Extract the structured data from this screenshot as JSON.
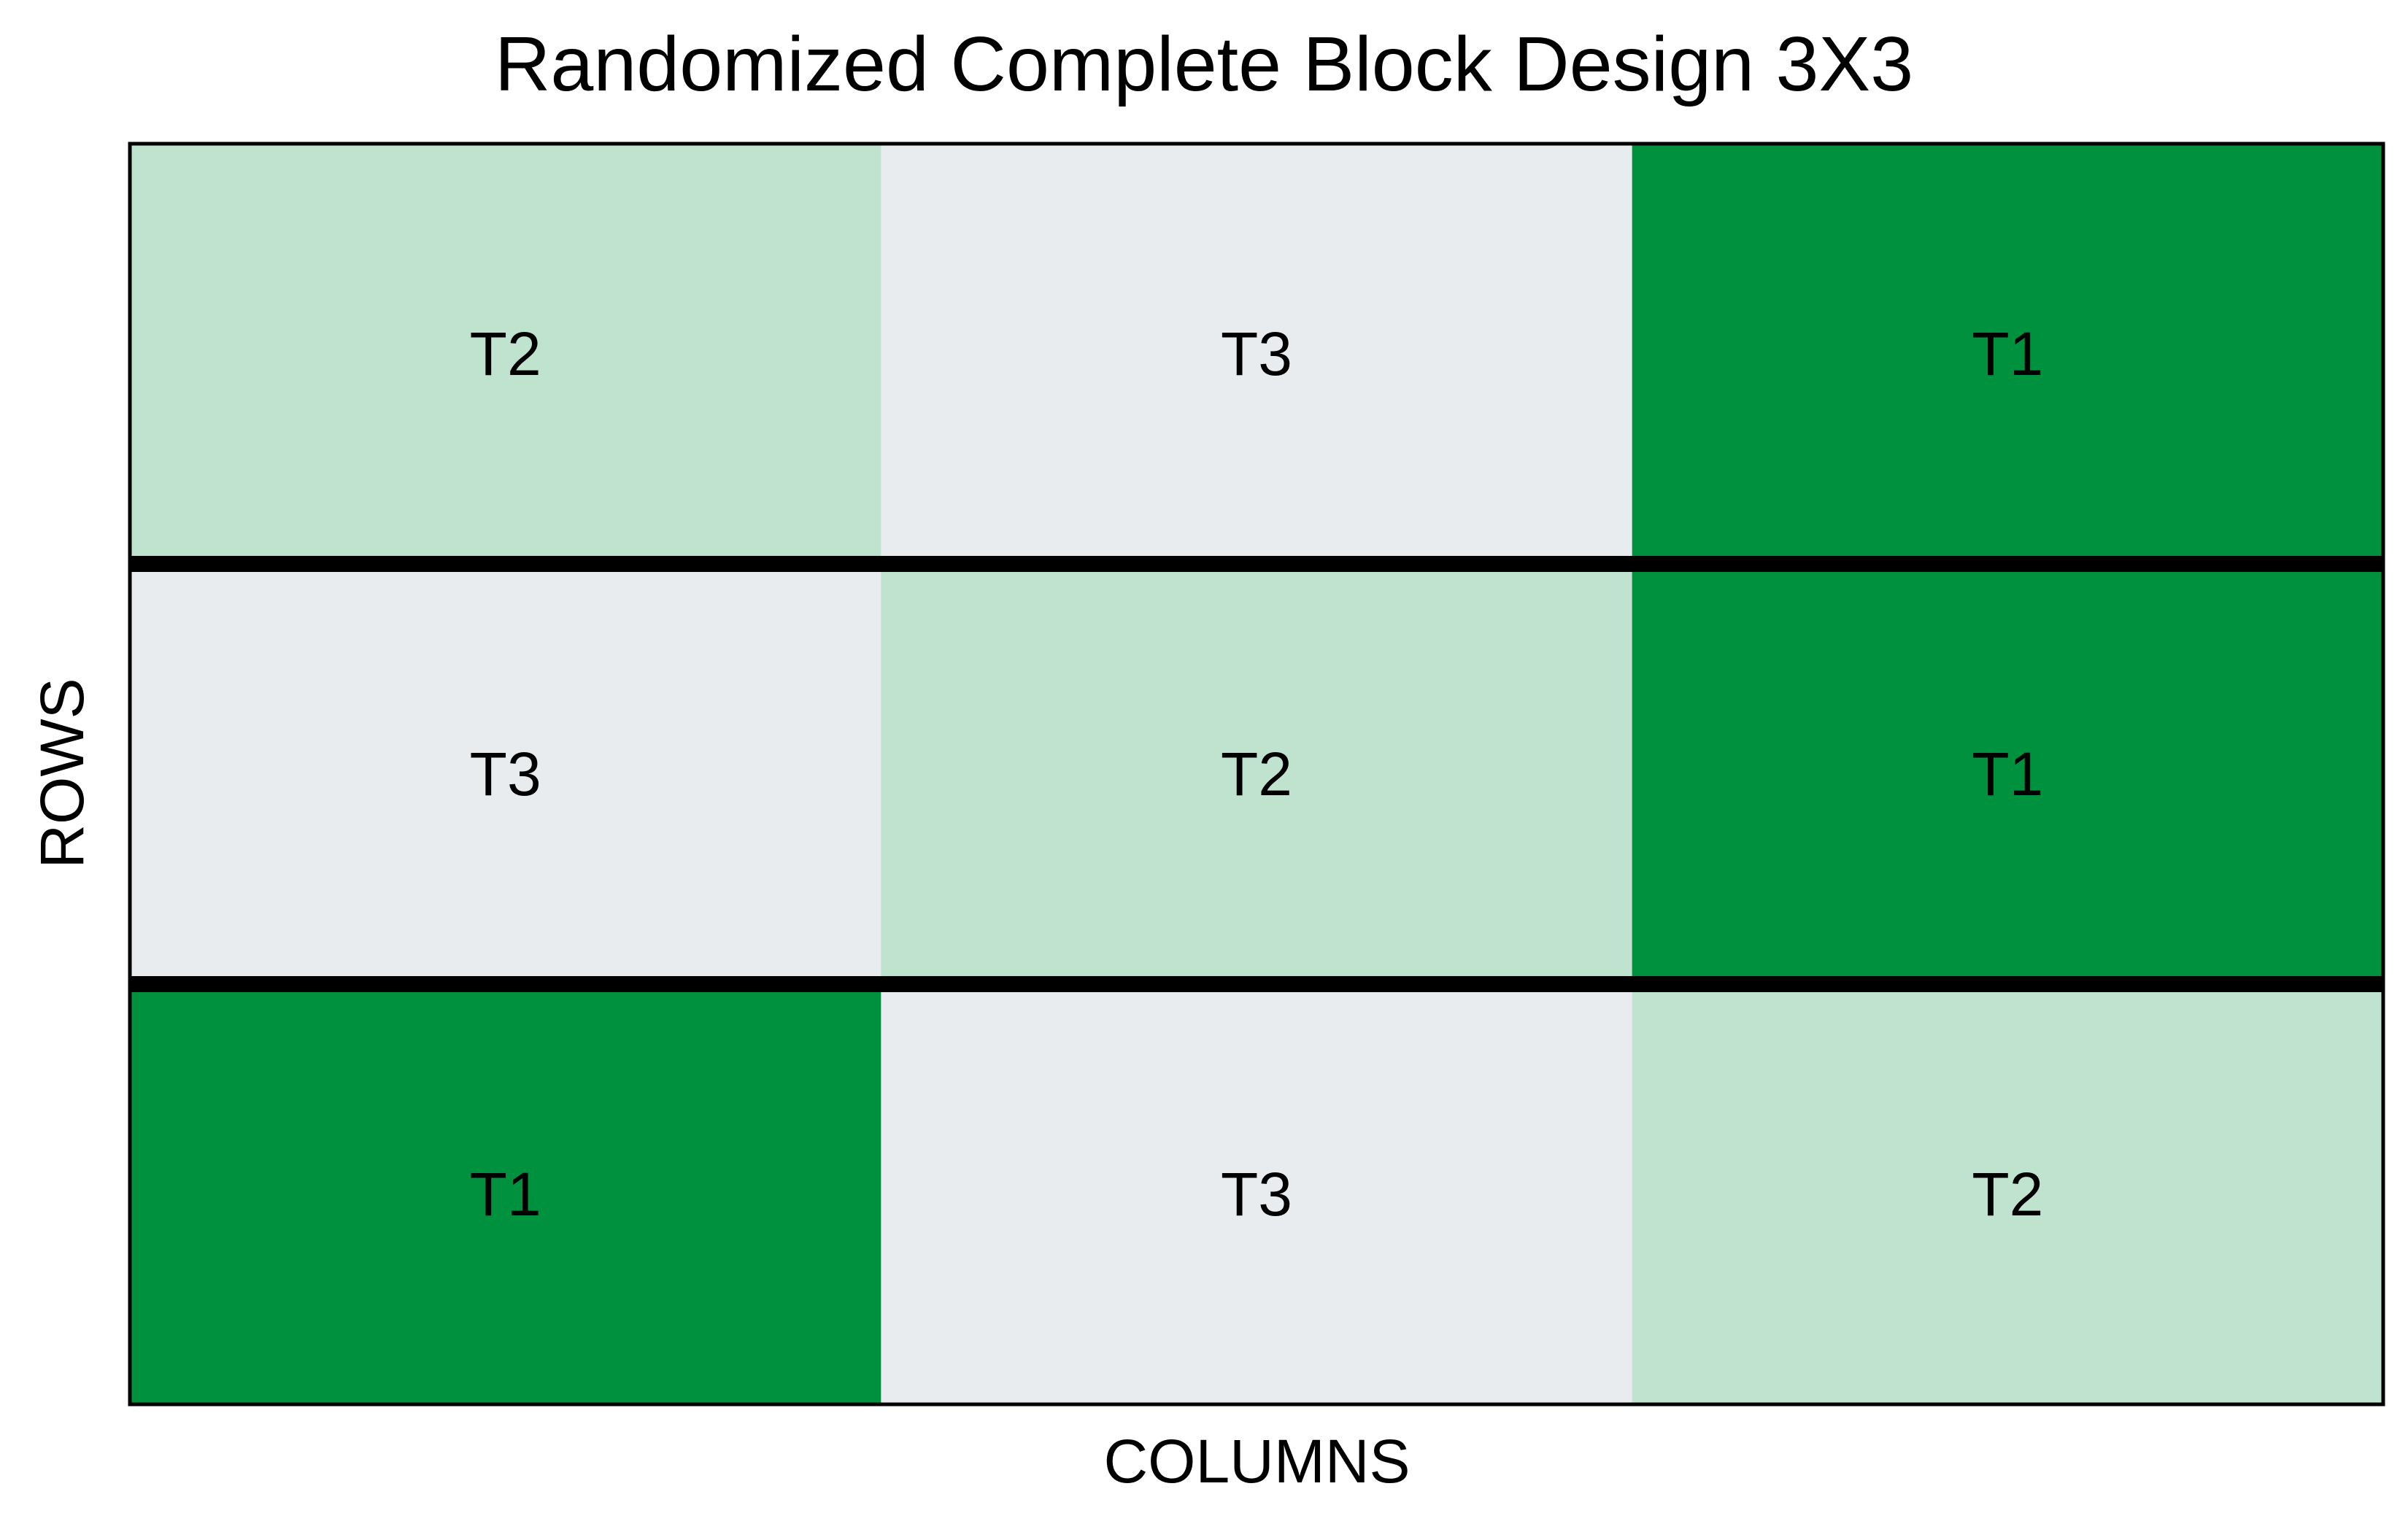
{
  "title": "Randomized Complete Block Design 3X3",
  "xlabel": "COLUMNS",
  "ylabel": "ROWS",
  "treatment_colors": {
    "T1": "#00913f",
    "T2": "#bfe3cf",
    "T3": "#e8ecef"
  },
  "chart_data": {
    "type": "heatmap",
    "rows": 3,
    "columns": 3,
    "cells": [
      [
        "T2",
        "T3",
        "T1"
      ],
      [
        "T3",
        "T2",
        "T1"
      ],
      [
        "T1",
        "T3",
        "T2"
      ]
    ],
    "block_separators": "horizontal",
    "legend": "none"
  }
}
